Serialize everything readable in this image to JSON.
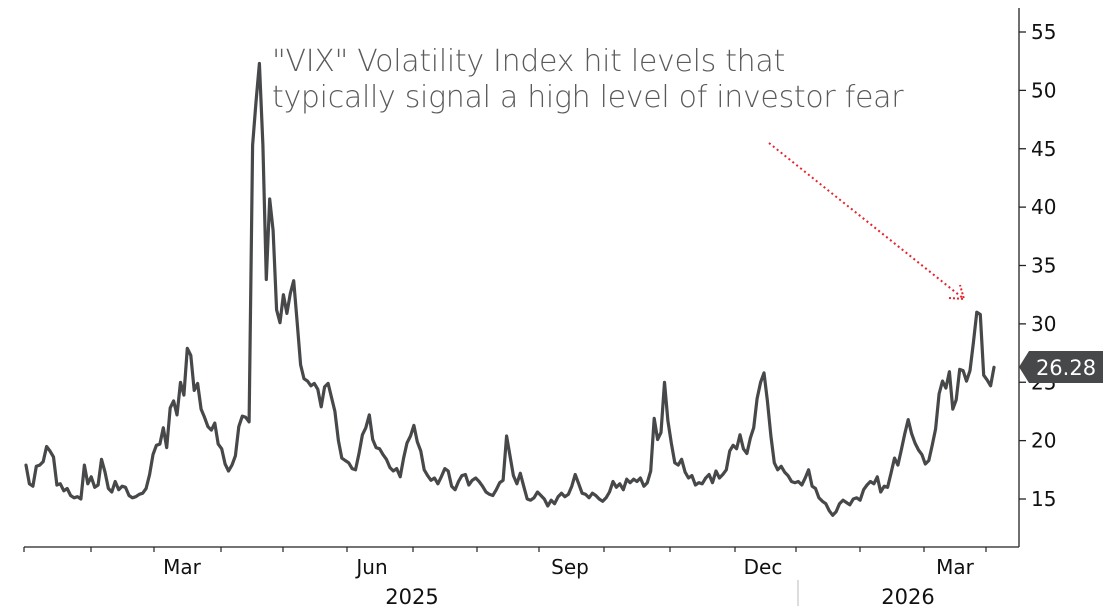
{
  "annotation": {
    "line1": "\"VIX\" Volatility Index hit levels that",
    "line2": "typically signal a high level of investor fear"
  },
  "chart_data": {
    "type": "line",
    "title": "\"VIX\" Volatility Index hit levels that typically signal a high level of investor fear",
    "xlabel": "",
    "ylabel": "",
    "ylim": [
      11,
      57
    ],
    "y_ticks": [
      15,
      20,
      25,
      30,
      35,
      40,
      45,
      50,
      55
    ],
    "x_month_labels": [
      "Mar",
      "Jun",
      "Sep",
      "Dec",
      "Mar"
    ],
    "year_labels": [
      "2025",
      "2026"
    ],
    "last_value": "26.28",
    "colors": {
      "series": "#47484a",
      "arrow": "#e8232a",
      "axis": "#222222",
      "badge": "#47484a"
    },
    "series": [
      {
        "name": "VIX",
        "values": [
          17.9,
          16.3,
          16.1,
          17.8,
          17.9,
          18.2,
          19.5,
          19.1,
          18.6,
          16.2,
          16.3,
          15.7,
          15.9,
          15.3,
          15.1,
          15.2,
          15.0,
          17.9,
          16.3,
          16.9,
          16.0,
          16.2,
          18.4,
          17.3,
          15.9,
          15.6,
          16.5,
          15.8,
          16.1,
          16.0,
          15.3,
          15.1,
          15.2,
          15.4,
          15.5,
          15.9,
          17.1,
          18.8,
          19.6,
          19.7,
          21.1,
          19.4,
          22.8,
          23.4,
          22.2,
          25.0,
          23.9,
          27.9,
          27.3,
          24.3,
          24.9,
          22.7,
          22.0,
          21.2,
          20.9,
          21.5,
          19.7,
          19.3,
          18.0,
          17.4,
          17.9,
          18.7,
          21.2,
          22.1,
          22.0,
          21.6,
          45.3,
          49.0,
          52.3,
          45.3,
          33.8,
          40.7,
          38.0,
          31.2,
          30.1,
          32.5,
          30.9,
          32.6,
          33.7,
          30.1,
          26.5,
          25.3,
          25.1,
          24.7,
          24.9,
          24.4,
          22.9,
          24.6,
          24.9,
          23.7,
          22.5,
          20.0,
          18.5,
          18.3,
          18.1,
          17.6,
          17.5,
          18.9,
          20.5,
          21.1,
          22.2,
          20.1,
          19.4,
          19.3,
          18.8,
          18.4,
          17.7,
          17.4,
          17.6,
          16.9,
          18.5,
          19.8,
          20.4,
          21.3,
          19.9,
          19.1,
          17.5,
          17.0,
          16.6,
          16.8,
          16.3,
          16.9,
          17.6,
          17.4,
          16.1,
          15.8,
          16.5,
          17.0,
          17.1,
          16.2,
          16.6,
          16.8,
          16.5,
          16.1,
          15.6,
          15.4,
          15.3,
          15.8,
          16.4,
          16.6,
          20.4,
          18.7,
          17.0,
          16.3,
          17.2,
          16.1,
          15.0,
          14.9,
          15.1,
          15.6,
          15.3,
          15.0,
          14.4,
          14.9,
          14.6,
          15.2,
          15.5,
          15.2,
          15.4,
          16.1,
          17.1,
          16.3,
          15.5,
          15.4,
          15.1,
          15.5,
          15.3,
          15.0,
          14.8,
          15.1,
          15.6,
          16.5,
          16.0,
          16.3,
          15.8,
          16.7,
          16.4,
          16.7,
          16.5,
          16.8,
          16.1,
          16.4,
          17.4,
          21.9,
          20.1,
          20.7,
          25.0,
          21.7,
          19.8,
          18.1,
          17.9,
          18.4,
          17.3,
          16.8,
          17.0,
          16.2,
          16.4,
          16.3,
          16.8,
          17.1,
          16.4,
          17.4,
          16.8,
          17.1,
          17.5,
          19.1,
          19.6,
          19.3,
          20.5,
          19.3,
          18.9,
          20.2,
          21.1,
          23.6,
          25.0,
          25.8,
          23.4,
          20.4,
          18.1,
          17.5,
          17.8,
          17.3,
          17.0,
          16.5,
          16.4,
          16.5,
          16.2,
          16.8,
          17.5,
          16.1,
          15.9,
          15.1,
          14.8,
          14.6,
          14.0,
          13.6,
          13.9,
          14.6,
          14.9,
          14.7,
          14.5,
          15.0,
          15.1,
          14.9,
          15.8,
          16.2,
          16.5,
          16.3,
          16.9,
          15.6,
          16.1,
          16.0,
          17.2,
          18.5,
          17.9,
          19.2,
          20.6,
          21.8,
          20.6,
          19.8,
          19.2,
          18.8,
          18.0,
          18.3,
          19.6,
          21.0,
          24.0,
          25.1,
          24.5,
          25.9,
          22.7,
          23.5,
          26.1,
          26.0,
          25.1,
          26.0,
          28.4,
          31.0,
          30.8,
          25.6,
          25.2,
          24.7,
          26.28
        ]
      }
    ]
  }
}
